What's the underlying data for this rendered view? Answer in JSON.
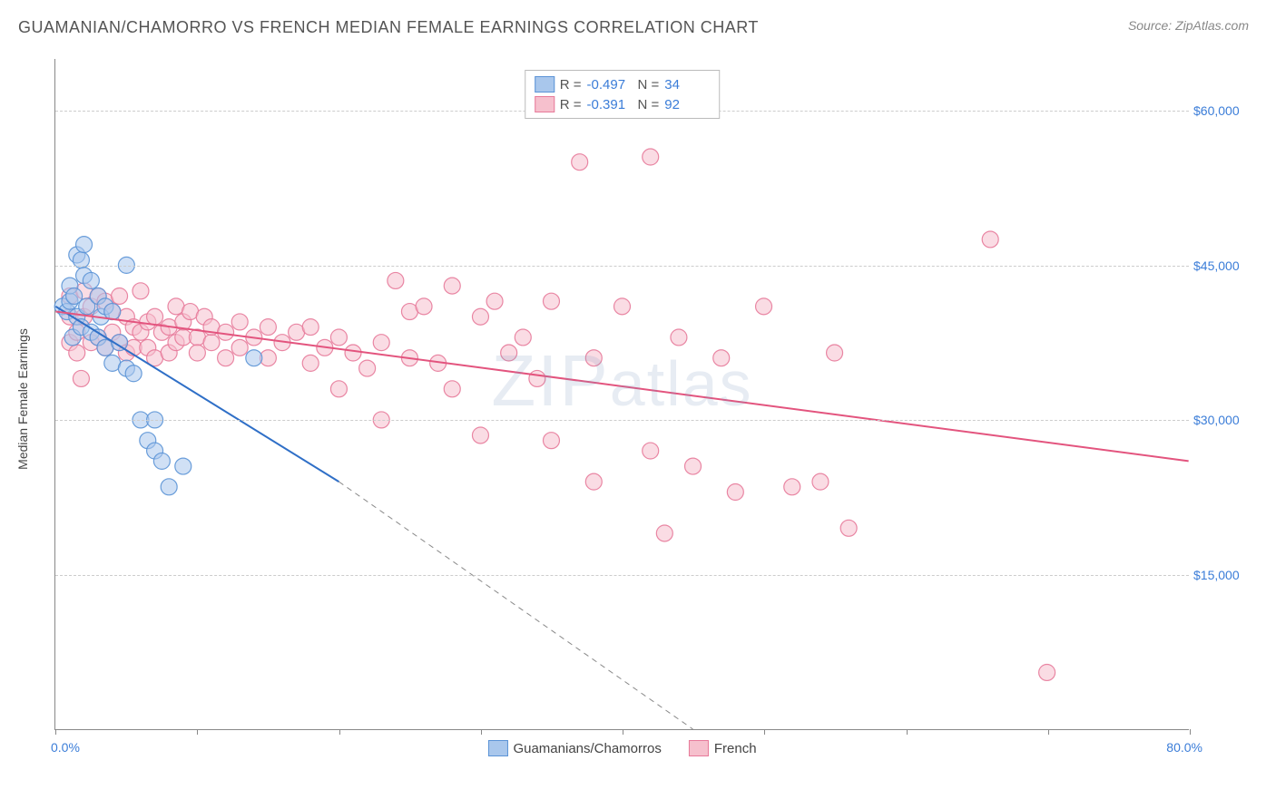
{
  "title": "GUAMANIAN/CHAMORRO VS FRENCH MEDIAN FEMALE EARNINGS CORRELATION CHART",
  "source_label": "Source: ZipAtlas.com",
  "watermark": "ZIPatlas",
  "ylabel": "Median Female Earnings",
  "chart": {
    "type": "scatter",
    "x_min": 0,
    "x_max": 80,
    "y_min": 0,
    "y_max": 65000,
    "x_min_label": "0.0%",
    "x_max_label": "80.0%",
    "y_ticks": [
      15000,
      30000,
      45000,
      60000
    ],
    "y_tick_labels": [
      "$15,000",
      "$30,000",
      "$45,000",
      "$60,000"
    ],
    "x_tick_positions": [
      0,
      10,
      20,
      30,
      40,
      50,
      60,
      70,
      80
    ],
    "grid_color": "#cccccc",
    "axis_color": "#888888",
    "background_color": "#ffffff",
    "marker_radius": 9,
    "marker_opacity": 0.55,
    "line_width": 2,
    "dash_pattern": "6,5",
    "series": [
      {
        "name": "Guamanians/Chamorros",
        "color_fill": "#a9c7ec",
        "color_stroke": "#5b93d6",
        "line_color": "#2f6fc7",
        "R": "-0.497",
        "N": "34",
        "trend": {
          "x1": 0,
          "y1": 41000,
          "x2_solid": 20,
          "y2_solid": 24000,
          "x2_dash": 45,
          "y2_dash": 0
        },
        "points": [
          [
            0.5,
            41000
          ],
          [
            0.8,
            40500
          ],
          [
            1,
            41500
          ],
          [
            1,
            43000
          ],
          [
            1.2,
            38000
          ],
          [
            1.3,
            42000
          ],
          [
            1.5,
            46000
          ],
          [
            1.5,
            40000
          ],
          [
            1.8,
            45500
          ],
          [
            1.8,
            39000
          ],
          [
            2,
            44000
          ],
          [
            2,
            47000
          ],
          [
            2.2,
            41000
          ],
          [
            2.5,
            43500
          ],
          [
            2.5,
            38500
          ],
          [
            3,
            42000
          ],
          [
            3,
            38000
          ],
          [
            3.2,
            40000
          ],
          [
            3.5,
            37000
          ],
          [
            3.5,
            41000
          ],
          [
            4,
            40500
          ],
          [
            4,
            35500
          ],
          [
            4.5,
            37500
          ],
          [
            5,
            45000
          ],
          [
            5,
            35000
          ],
          [
            5.5,
            34500
          ],
          [
            6,
            30000
          ],
          [
            6.5,
            28000
          ],
          [
            7,
            27000
          ],
          [
            7,
            30000
          ],
          [
            7.5,
            26000
          ],
          [
            8,
            23500
          ],
          [
            9,
            25500
          ],
          [
            14,
            36000
          ]
        ]
      },
      {
        "name": "French",
        "color_fill": "#f6c0cd",
        "color_stroke": "#e77a9a",
        "line_color": "#e3547e",
        "R": "-0.391",
        "N": "92",
        "trend": {
          "x1": 0,
          "y1": 40500,
          "x2_solid": 80,
          "y2_solid": 26000,
          "x2_dash": 80,
          "y2_dash": 26000
        },
        "points": [
          [
            1,
            37500
          ],
          [
            1,
            42000
          ],
          [
            1,
            40000
          ],
          [
            1.5,
            38500
          ],
          [
            1.5,
            36500
          ],
          [
            1.8,
            34000
          ],
          [
            2,
            42500
          ],
          [
            2,
            40000
          ],
          [
            2.5,
            41000
          ],
          [
            2.5,
            37500
          ],
          [
            3,
            42000
          ],
          [
            3,
            38000
          ],
          [
            3.5,
            41500
          ],
          [
            3.5,
            37000
          ],
          [
            4,
            40500
          ],
          [
            4,
            38500
          ],
          [
            4.5,
            42000
          ],
          [
            4.5,
            37500
          ],
          [
            5,
            40000
          ],
          [
            5,
            36500
          ],
          [
            5.5,
            39000
          ],
          [
            5.5,
            37000
          ],
          [
            6,
            42500
          ],
          [
            6,
            38500
          ],
          [
            6.5,
            37000
          ],
          [
            6.5,
            39500
          ],
          [
            7,
            40000
          ],
          [
            7,
            36000
          ],
          [
            7.5,
            38500
          ],
          [
            8,
            39000
          ],
          [
            8,
            36500
          ],
          [
            8.5,
            41000
          ],
          [
            8.5,
            37500
          ],
          [
            9,
            38000
          ],
          [
            9,
            39500
          ],
          [
            9.5,
            40500
          ],
          [
            10,
            38000
          ],
          [
            10,
            36500
          ],
          [
            10.5,
            40000
          ],
          [
            11,
            37500
          ],
          [
            11,
            39000
          ],
          [
            12,
            38500
          ],
          [
            12,
            36000
          ],
          [
            13,
            39500
          ],
          [
            13,
            37000
          ],
          [
            14,
            38000
          ],
          [
            15,
            39000
          ],
          [
            15,
            36000
          ],
          [
            16,
            37500
          ],
          [
            17,
            38500
          ],
          [
            18,
            39000
          ],
          [
            18,
            35500
          ],
          [
            19,
            37000
          ],
          [
            20,
            38000
          ],
          [
            20,
            33000
          ],
          [
            21,
            36500
          ],
          [
            22,
            35000
          ],
          [
            23,
            37500
          ],
          [
            23,
            30000
          ],
          [
            24,
            43500
          ],
          [
            25,
            40500
          ],
          [
            25,
            36000
          ],
          [
            26,
            41000
          ],
          [
            27,
            35500
          ],
          [
            28,
            43000
          ],
          [
            28,
            33000
          ],
          [
            30,
            40000
          ],
          [
            30,
            28500
          ],
          [
            31,
            41500
          ],
          [
            32,
            36500
          ],
          [
            33,
            38000
          ],
          [
            34,
            34000
          ],
          [
            35,
            41500
          ],
          [
            35,
            28000
          ],
          [
            37,
            55000
          ],
          [
            38,
            36000
          ],
          [
            38,
            24000
          ],
          [
            40,
            41000
          ],
          [
            42,
            55500
          ],
          [
            42,
            27000
          ],
          [
            43,
            19000
          ],
          [
            44,
            38000
          ],
          [
            45,
            25500
          ],
          [
            47,
            36000
          ],
          [
            48,
            23000
          ],
          [
            50,
            41000
          ],
          [
            52,
            23500
          ],
          [
            54,
            24000
          ],
          [
            55,
            36500
          ],
          [
            56,
            19500
          ],
          [
            66,
            47500
          ],
          [
            70,
            5500
          ]
        ]
      }
    ]
  },
  "legend": {
    "series1_label": "Guamanians/Chamorros",
    "series2_label": "French"
  }
}
